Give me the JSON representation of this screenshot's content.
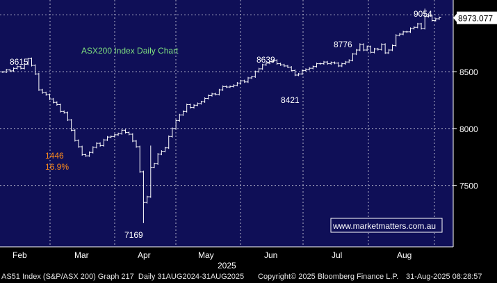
{
  "chart_data": {
    "type": "ohlc",
    "title": "ASX200 Index Daily Chart",
    "website": "www.marketmatters.com.au",
    "year_label": "2025",
    "xlabels": [
      "Feb",
      "Mar",
      "Apr",
      "May",
      "Jun",
      "Jul",
      "Aug"
    ],
    "yticks": [
      7500,
      8000,
      8500
    ],
    "ylim": [
      6960,
      9130
    ],
    "grid": true,
    "colors": {
      "background": "#0f0f57",
      "grid": "#c8c8d8",
      "price": "#ffffff",
      "title": "#7fe07f",
      "drawdown": "#ff8c1a",
      "current_value_box": "#ffffff"
    },
    "current_value_label": "8973.077",
    "current_value": 8973.077,
    "annotations": [
      {
        "text": "8615",
        "value": 8615
      },
      {
        "text": "1446",
        "value": 1446
      },
      {
        "text": "16.9%",
        "value": 16.9
      },
      {
        "text": "7169",
        "value": 7169
      },
      {
        "text": "8639",
        "value": 8639
      },
      {
        "text": "8421",
        "value": 8421
      },
      {
        "text": "8776",
        "value": 8776
      },
      {
        "text": "9054",
        "value": 9054
      }
    ],
    "closes": [
      8497,
      8515,
      8507,
      8529,
      8544,
      8529,
      8566,
      8615,
      8555,
      8480,
      8340,
      8315,
      8298,
      8260,
      8230,
      8210,
      8150,
      8140,
      8075,
      7985,
      7895,
      7840,
      7770,
      7760,
      7790,
      7835,
      7870,
      7850,
      7900,
      7925,
      7930,
      7945,
      7955,
      7985,
      7965,
      7950,
      7890,
      7840,
      7620,
      7350,
      7400,
      7660,
      7690,
      7775,
      7800,
      7830,
      7930,
      8000,
      8070,
      8120,
      8150,
      8210,
      8185,
      8205,
      8220,
      8235,
      8265,
      8290,
      8305,
      8300,
      8340,
      8370,
      8365,
      8370,
      8380,
      8400,
      8420,
      8410,
      8445,
      8455,
      8500,
      8525,
      8560,
      8575,
      8590,
      8600,
      8570,
      8560,
      8550,
      8540,
      8510,
      8470,
      8480,
      8510,
      8520,
      8530,
      8545,
      8570,
      8570,
      8585,
      8570,
      8580,
      8575,
      8550,
      8570,
      8585,
      8600,
      8655,
      8690,
      8740,
      8690,
      8720,
      8670,
      8700,
      8695,
      8740,
      8665,
      8690,
      8730,
      8820,
      8830,
      8850,
      8850,
      8880,
      8890,
      8920,
      8880,
      8985,
      8990,
      8950,
      8965,
      8975
    ]
  }
}
